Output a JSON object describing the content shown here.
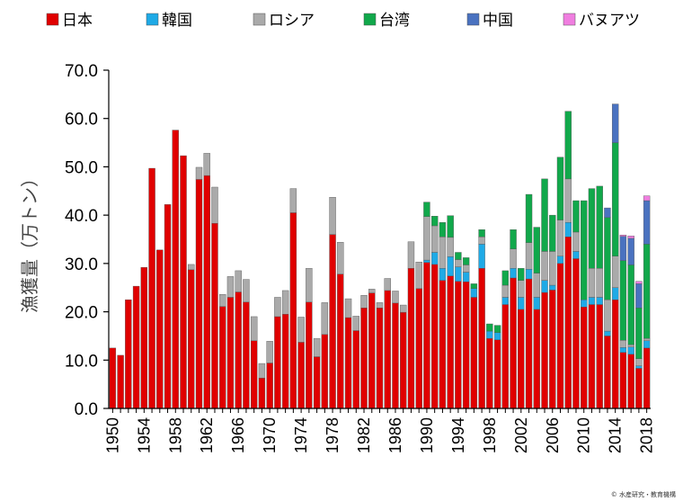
{
  "chart_data": {
    "type": "bar",
    "stacked": true,
    "ylabel": "漁獲量（万トン）",
    "ylim": [
      0,
      70
    ],
    "yticks": [
      "0.0",
      "10.0",
      "20.0",
      "30.0",
      "40.0",
      "50.0",
      "60.0",
      "70.0"
    ],
    "xtick_labels": [
      "1950",
      "1954",
      "1958",
      "1962",
      "1966",
      "1970",
      "1974",
      "1978",
      "1982",
      "1986",
      "1990",
      "1994",
      "1998",
      "2002",
      "2006",
      "2010",
      "2014",
      "2018"
    ],
    "legend_position": "top",
    "grid": false,
    "x": [
      1950,
      1951,
      1952,
      1953,
      1954,
      1955,
      1956,
      1957,
      1958,
      1959,
      1960,
      1961,
      1962,
      1963,
      1964,
      1965,
      1966,
      1967,
      1968,
      1969,
      1970,
      1971,
      1972,
      1973,
      1974,
      1975,
      1976,
      1977,
      1978,
      1979,
      1980,
      1981,
      1982,
      1983,
      1984,
      1985,
      1986,
      1987,
      1988,
      1989,
      1990,
      1991,
      1992,
      1993,
      1994,
      1995,
      1996,
      1997,
      1998,
      1999,
      2000,
      2001,
      2002,
      2003,
      2004,
      2005,
      2006,
      2007,
      2008,
      2009,
      2010,
      2011,
      2012,
      2013,
      2014,
      2015,
      2016,
      2017,
      2018
    ],
    "series": [
      {
        "name": "日本",
        "color": "#e00000",
        "values": [
          12.5,
          11,
          22.5,
          25.3,
          29.2,
          49.7,
          32.8,
          42.2,
          57.6,
          52.3,
          28.7,
          47.4,
          48.2,
          38.3,
          21.1,
          23,
          24.1,
          22,
          14,
          6.3,
          9.4,
          19,
          19.5,
          40.5,
          13.7,
          22,
          10.7,
          15.3,
          36,
          27.8,
          18.8,
          16.1,
          20.8,
          23.9,
          20.8,
          24.4,
          21.8,
          19.9,
          29,
          24.8,
          30.2,
          29.8,
          26.5,
          27.4,
          26.3,
          26.2,
          23,
          29,
          14.5,
          14.2,
          21.5,
          27,
          20.5,
          26.8,
          20.5,
          24,
          24.5,
          30,
          35.5,
          31,
          21,
          21.5,
          21.5,
          15,
          22.5,
          11.6,
          11.2,
          8.3,
          12.5
        ]
      },
      {
        "name": "韓国",
        "color": "#1faae6",
        "values": [
          0,
          0,
          0,
          0,
          0,
          0,
          0,
          0,
          0,
          0,
          0,
          0,
          0,
          0,
          0,
          0,
          0,
          0,
          0,
          0,
          0,
          0,
          0,
          0,
          0,
          0,
          0,
          0,
          0,
          0,
          0,
          0,
          0,
          0,
          0,
          0,
          0,
          0,
          0,
          0,
          0.5,
          2.5,
          2.5,
          4,
          3,
          2,
          1.8,
          5,
          1.5,
          1.5,
          1.5,
          2,
          2.5,
          2,
          2.5,
          2.5,
          1,
          1.5,
          3,
          1.5,
          1.5,
          1.5,
          1.5,
          1,
          2.5,
          1,
          1.5,
          0.5,
          1.5
        ]
      },
      {
        "name": "ロシア",
        "color": "#aaaaaa",
        "values": [
          0,
          0,
          0,
          0,
          0,
          0,
          0,
          0,
          0,
          0,
          1.1,
          2.5,
          4.6,
          7.5,
          2.5,
          4.3,
          4.4,
          4.7,
          5,
          3,
          4.5,
          4,
          4.9,
          5,
          5.2,
          7,
          3.8,
          6.6,
          7.7,
          6.6,
          3.9,
          3,
          2.6,
          0.8,
          1.1,
          2.5,
          2.5,
          1.5,
          5.5,
          5.5,
          9,
          5.5,
          6.5,
          4,
          1.5,
          1.5,
          0,
          1.5,
          0,
          0,
          2.5,
          4,
          3.5,
          5.5,
          5,
          6,
          7,
          7.5,
          9,
          4,
          0,
          6,
          6,
          6.5,
          6.5,
          1.5,
          0.5,
          1.5,
          0.5
        ]
      },
      {
        "name": "台湾",
        "color": "#11a84b",
        "values": [
          0,
          0,
          0,
          0,
          0,
          0,
          0,
          0,
          0,
          0,
          0,
          0,
          0,
          0,
          0,
          0,
          0,
          0,
          0,
          0,
          0,
          0,
          0,
          0,
          0,
          0,
          0,
          0,
          0,
          0,
          0,
          0,
          0,
          0,
          0,
          0,
          0,
          0,
          0,
          0,
          3,
          2,
          3,
          4.5,
          1.5,
          1.5,
          1,
          1.5,
          1.5,
          1.5,
          3,
          4,
          2.5,
          10,
          9.5,
          15,
          7.5,
          13,
          14,
          6.5,
          20.5,
          16.5,
          17,
          17,
          23.5,
          16.5,
          16.5,
          10.5,
          19.5
        ]
      },
      {
        "name": "中国",
        "color": "#4a72c0",
        "values": [
          0,
          0,
          0,
          0,
          0,
          0,
          0,
          0,
          0,
          0,
          0,
          0,
          0,
          0,
          0,
          0,
          0,
          0,
          0,
          0,
          0,
          0,
          0,
          0,
          0,
          0,
          0,
          0,
          0,
          0,
          0,
          0,
          0,
          0,
          0,
          0,
          0,
          0,
          0,
          0,
          0,
          0,
          0,
          0,
          0,
          0,
          0,
          0,
          0,
          0,
          0,
          0,
          0,
          0,
          0,
          0,
          0,
          0,
          0,
          0,
          0,
          0,
          0,
          2,
          8,
          5,
          5.5,
          5,
          9
        ]
      },
      {
        "name": "バヌアツ",
        "color": "#f07ee0",
        "values": [
          0,
          0,
          0,
          0,
          0,
          0,
          0,
          0,
          0,
          0,
          0,
          0,
          0,
          0,
          0,
          0,
          0,
          0,
          0,
          0,
          0,
          0,
          0,
          0,
          0,
          0,
          0,
          0,
          0,
          0,
          0,
          0,
          0,
          0,
          0,
          0,
          0,
          0,
          0,
          0,
          0,
          0,
          0,
          0,
          0,
          0,
          0,
          0,
          0,
          0,
          0,
          0,
          0,
          0,
          0,
          0,
          0,
          0,
          0,
          0,
          0,
          0,
          0,
          0,
          0,
          0.3,
          0.5,
          0.5,
          1
        ]
      }
    ]
  },
  "credit": "© 水産研究・教育機構"
}
